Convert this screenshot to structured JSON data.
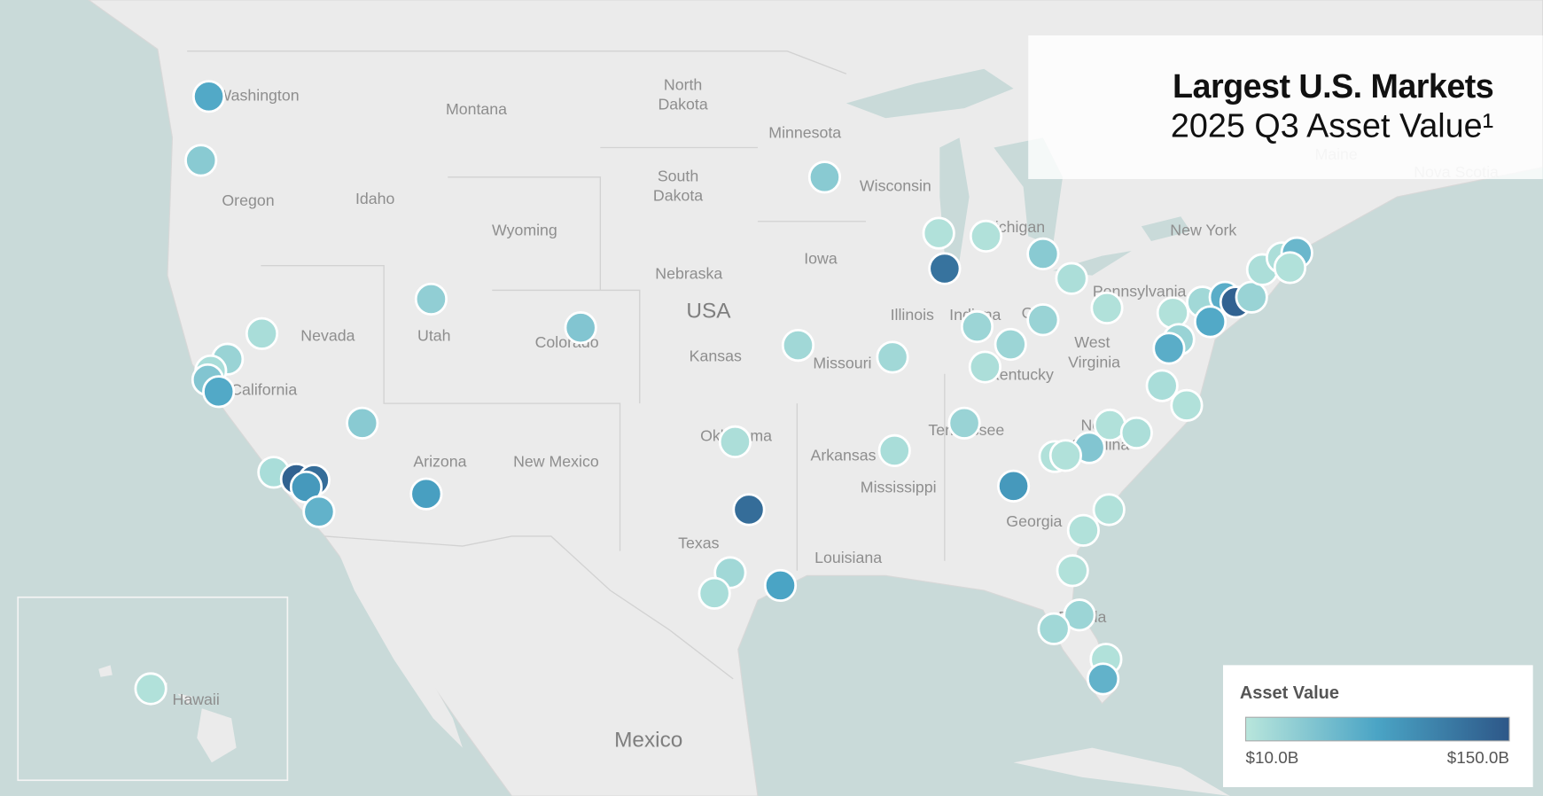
{
  "title": "Largest U.S. Markets",
  "subtitle": "2025 Q3 Asset Value¹",
  "map_labels": [
    "Washington",
    "Montana",
    "North",
    "Dakota",
    "Minnesota",
    "Wisconsin",
    "South",
    "Dakota",
    "Oregon",
    "Idaho",
    "Wyoming",
    "Iowa",
    "Nebraska",
    "USA",
    "Nevada",
    "Utah",
    "Colorado",
    "Kansas",
    "Missouri",
    "Illinois",
    "Indiana",
    "Ohio",
    "Michigan",
    "Pennsylvania",
    "New York",
    "West",
    "Virginia",
    "Kentucky",
    "Tennessee",
    "California",
    "Arizona",
    "New Mexico",
    "Oklahoma",
    "Arkansas",
    "Mississippi",
    "Georgia",
    "North",
    "Carolina",
    "Texas",
    "Louisiana",
    "Florida",
    "Hawaii",
    "Mexico",
    "Maine",
    "Nova Scotia"
  ],
  "legend": {
    "title": "Asset Value",
    "range": [
      {
        "value": 10,
        "label": "$10.0B"
      },
      {
        "value": 150,
        "label": "$150.0B"
      }
    ],
    "colors": [
      "#b9e6dc",
      "#4aa4c5",
      "#2d5788"
    ]
  },
  "markets": {
    "values": [
      75,
      40,
      35,
      20,
      30,
      20,
      45,
      75,
      40,
      20,
      140,
      130,
      90,
      65,
      85,
      45,
      18,
      130,
      25,
      20,
      80,
      25,
      40,
      25,
      20,
      15,
      125,
      15,
      40,
      18,
      28,
      30,
      28,
      18,
      30,
      90,
      15,
      15,
      30,
      70,
      20,
      15,
      25,
      70,
      140,
      75,
      30,
      18,
      18,
      60,
      15,
      15,
      18,
      45,
      15,
      15,
      15,
      15,
      15,
      28,
      25,
      15,
      65,
      15
    ]
  }
}
